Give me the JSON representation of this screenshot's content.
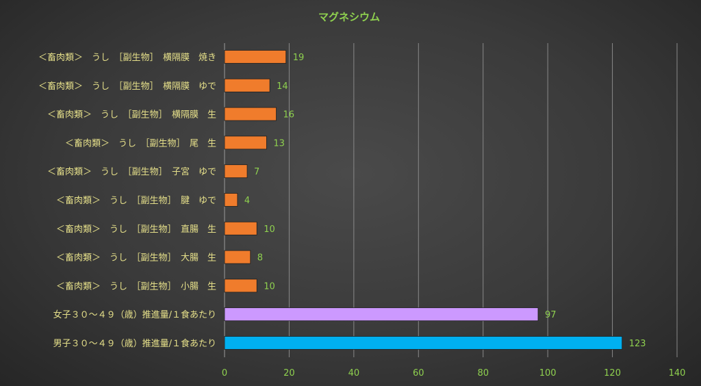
{
  "chart_data": {
    "type": "bar",
    "orientation": "horizontal",
    "title": "マグネシウム",
    "categories": [
      "＜畜肉類＞　うし　［副生物］　横隔膜　焼き",
      "＜畜肉類＞　うし　［副生物］　横隔膜　ゆで",
      "＜畜肉類＞　うし　［副生物］　横隔膜　生",
      "＜畜肉類＞　うし　［副生物］　尾　生",
      "＜畜肉類＞　うし　［副生物］　子宮　ゆで",
      "＜畜肉類＞　うし　［副生物］　腱　ゆで",
      "＜畜肉類＞　うし　［副生物］　直腸　生",
      "＜畜肉類＞　うし　［副生物］　大腸　生",
      "＜畜肉類＞　うし　［副生物］　小腸　生",
      "女子３０～４９（歳）推進量/１食あたり",
      "男子３０～４９（歳）推進量/１食あたり"
    ],
    "values": [
      19,
      14,
      16,
      13,
      7,
      4,
      10,
      8,
      10,
      97,
      123
    ],
    "bar_colors": [
      "#f07c2c",
      "#f07c2c",
      "#f07c2c",
      "#f07c2c",
      "#f07c2c",
      "#f07c2c",
      "#f07c2c",
      "#f07c2c",
      "#f07c2c",
      "#cc99ff",
      "#00b0f0"
    ],
    "xlim": [
      0,
      140
    ],
    "xticks": [
      0,
      20,
      40,
      60,
      80,
      100,
      120,
      140
    ],
    "xlabel": "",
    "ylabel": "",
    "grid": true,
    "legend": "none"
  }
}
